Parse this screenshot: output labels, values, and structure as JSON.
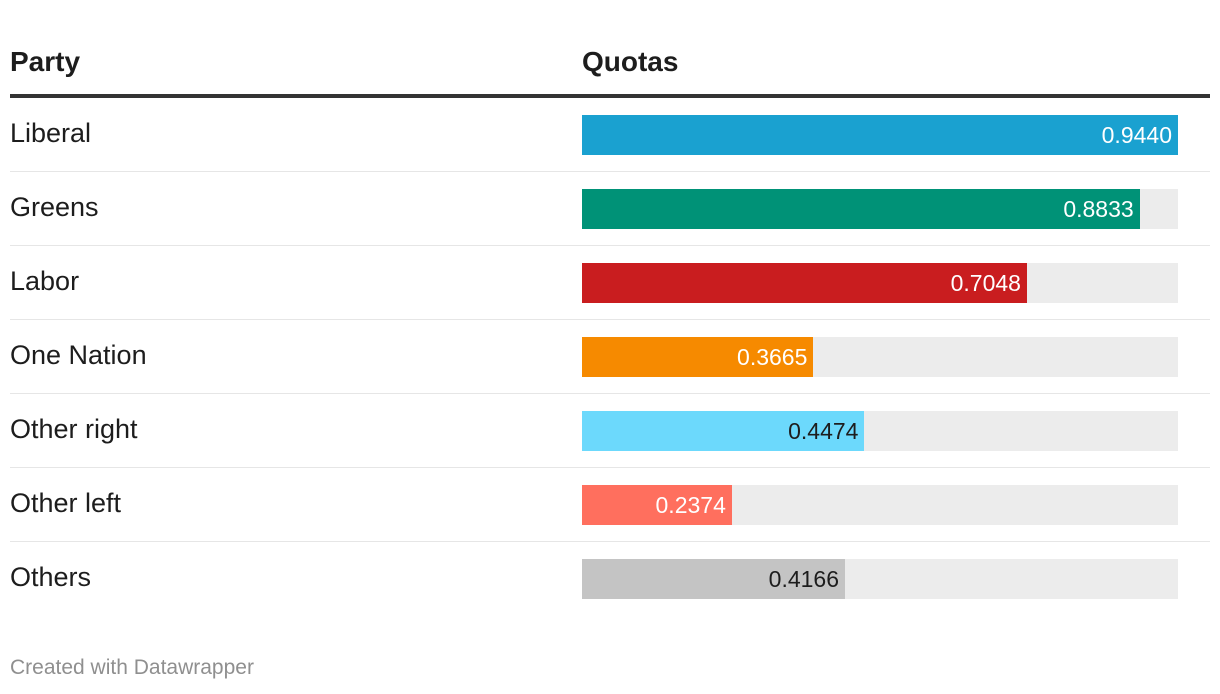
{
  "table": {
    "header_party": "Party",
    "header_quotas": "Quotas"
  },
  "chart_data": {
    "type": "bar",
    "orientation": "horizontal",
    "xlim": [
      0,
      0.944
    ],
    "categories": [
      "Liberal",
      "Greens",
      "Labor",
      "One Nation",
      "Other right",
      "Other left",
      "Others"
    ],
    "values": [
      0.944,
      0.8833,
      0.7048,
      0.3665,
      0.4474,
      0.2374,
      0.4166
    ],
    "value_labels": [
      "0.9440",
      "0.8833",
      "0.7048",
      "0.3665",
      "0.4474",
      "0.2374",
      "0.4166"
    ],
    "colors": [
      "#1aa1d0",
      "#009277",
      "#c91d1f",
      "#f68a00",
      "#6cd9fc",
      "#ff6f5e",
      "#c4c4c4"
    ],
    "label_colors": [
      "#ffffff",
      "#ffffff",
      "#ffffff",
      "#ffffff",
      "#1d1d1d",
      "#ffffff",
      "#1d1d1d"
    ],
    "track_color": "#ececec"
  },
  "footer": {
    "credit": "Created with Datawrapper"
  }
}
